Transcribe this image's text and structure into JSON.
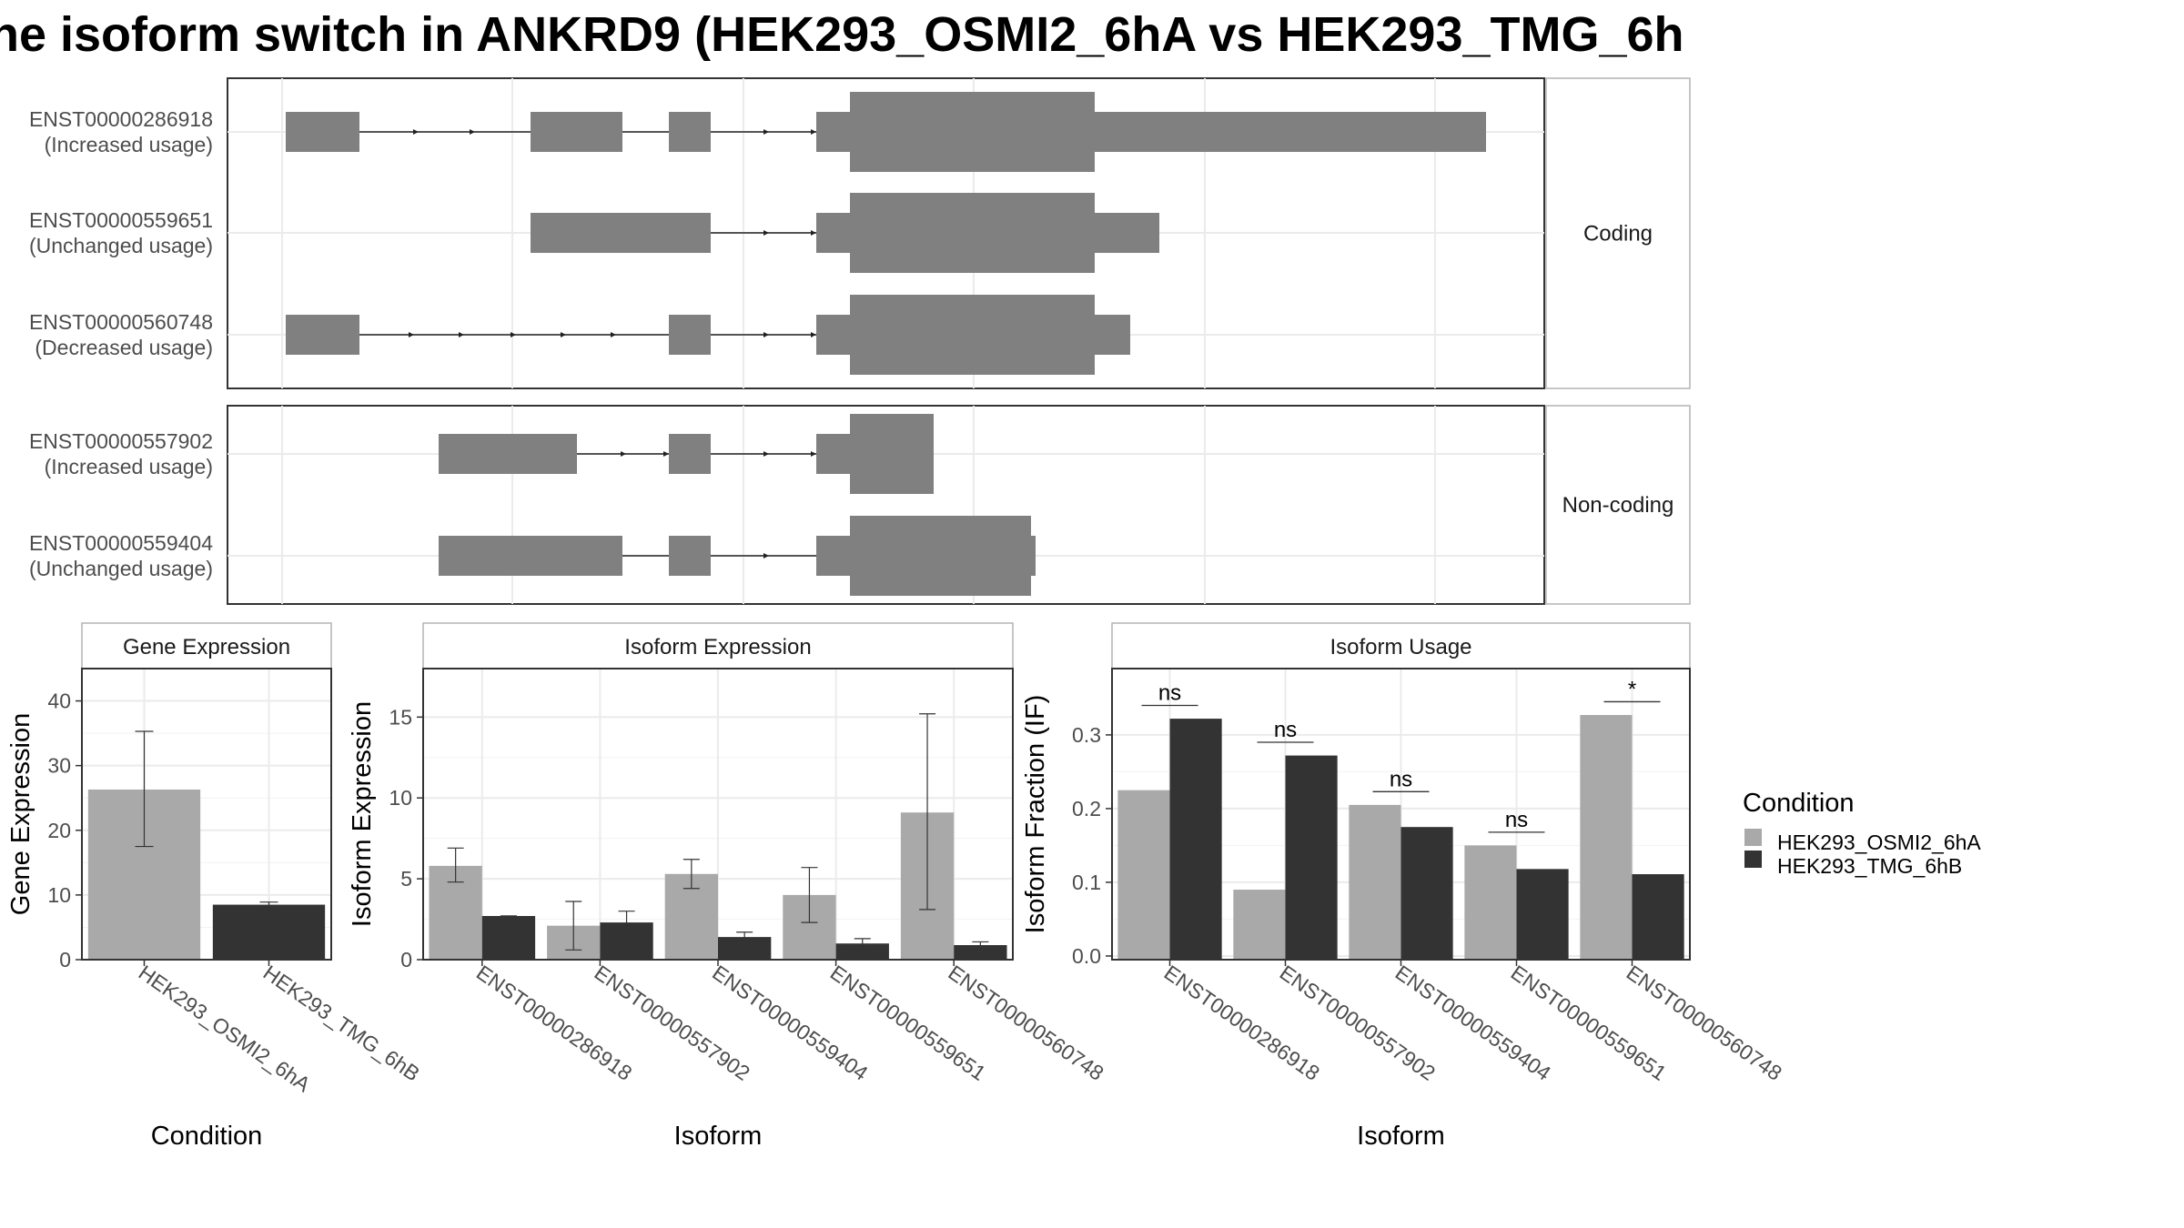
{
  "title": "ne isoform switch in ANKRD9 (HEK293_OSMI2_6hA vs HEK293_TMG_6h",
  "colors": {
    "cond_a": "#a9a9a9",
    "cond_b": "#333333",
    "exon": "#808080",
    "panel_border": "#333333",
    "strip_border": "#b3b3b3",
    "grid": "#ebebeb",
    "text": "#4d4d4d"
  },
  "structure": {
    "facets": [
      "Coding",
      "Non-coding"
    ],
    "transcripts": [
      {
        "id": "ENST00000286918",
        "usage": "(Increased usage)",
        "facet": 0
      },
      {
        "id": "ENST00000559651",
        "usage": "(Unchanged usage)",
        "facet": 0
      },
      {
        "id": "ENST00000560748",
        "usage": "(Decreased usage)",
        "facet": 0
      },
      {
        "id": "ENST00000557902",
        "usage": "(Increased usage)",
        "facet": 1
      },
      {
        "id": "ENST00000559404",
        "usage": "(Unchanged usage)",
        "facet": 1
      }
    ]
  },
  "chart_data": [
    {
      "type": "bar",
      "strip": "Gene Expression",
      "xlabel": "Condition",
      "ylabel": "Gene Expression",
      "ylim": [
        0,
        45
      ],
      "yticks": [
        0,
        10,
        20,
        30,
        40
      ],
      "categories": [
        "HEK293_OSMI2_6hA",
        "HEK293_TMG_6hB"
      ],
      "values": [
        26.3,
        8.5
      ],
      "errors": [
        [
          17.5,
          35.3
        ],
        [
          8.2,
          8.9
        ]
      ]
    },
    {
      "type": "bar",
      "strip": "Isoform Expression",
      "xlabel": "Isoform",
      "ylabel": "Isoform Expression",
      "ylim": [
        0,
        18
      ],
      "yticks": [
        0,
        5,
        10,
        15
      ],
      "categories": [
        "ENST00000286918",
        "ENST00000557902",
        "ENST00000559404",
        "ENST00000559651",
        "ENST00000560748"
      ],
      "series": [
        {
          "name": "HEK293_OSMI2_6hA",
          "values": [
            5.8,
            2.1,
            5.3,
            4.0,
            9.1
          ],
          "errors": [
            [
              4.8,
              6.9
            ],
            [
              0.6,
              3.6
            ],
            [
              4.4,
              6.2
            ],
            [
              2.3,
              5.7
            ],
            [
              3.1,
              15.2
            ]
          ]
        },
        {
          "name": "HEK293_TMG_6hB",
          "values": [
            2.7,
            2.3,
            1.4,
            1.0,
            0.9
          ],
          "errors": [
            [
              2.7,
              2.7
            ],
            [
              1.6,
              3.0
            ],
            [
              1.2,
              1.7
            ],
            [
              0.7,
              1.3
            ],
            [
              0.7,
              1.1
            ]
          ]
        }
      ]
    },
    {
      "type": "bar",
      "strip": "Isoform Usage",
      "xlabel": "Isoform",
      "ylabel": "Isoform Fraction (IF)",
      "ylim": [
        -0.005,
        0.39
      ],
      "yticks": [
        0.0,
        0.1,
        0.2,
        0.3
      ],
      "ytick_labels": [
        "0.0",
        "0.1",
        "0.2",
        "0.3"
      ],
      "categories": [
        "ENST00000286918",
        "ENST00000557902",
        "ENST00000559404",
        "ENST00000559651",
        "ENST00000560748"
      ],
      "series": [
        {
          "name": "HEK293_OSMI2_6hA",
          "values": [
            0.225,
            0.09,
            0.205,
            0.15,
            0.327
          ]
        },
        {
          "name": "HEK293_TMG_6hB",
          "values": [
            0.322,
            0.272,
            0.175,
            0.118,
            0.111
          ]
        }
      ],
      "significance": [
        "ns",
        "ns",
        "ns",
        "ns",
        "*"
      ]
    }
  ],
  "legend": {
    "title": "Condition",
    "items": [
      "HEK293_OSMI2_6hA",
      "HEK293_TMG_6hB"
    ]
  }
}
